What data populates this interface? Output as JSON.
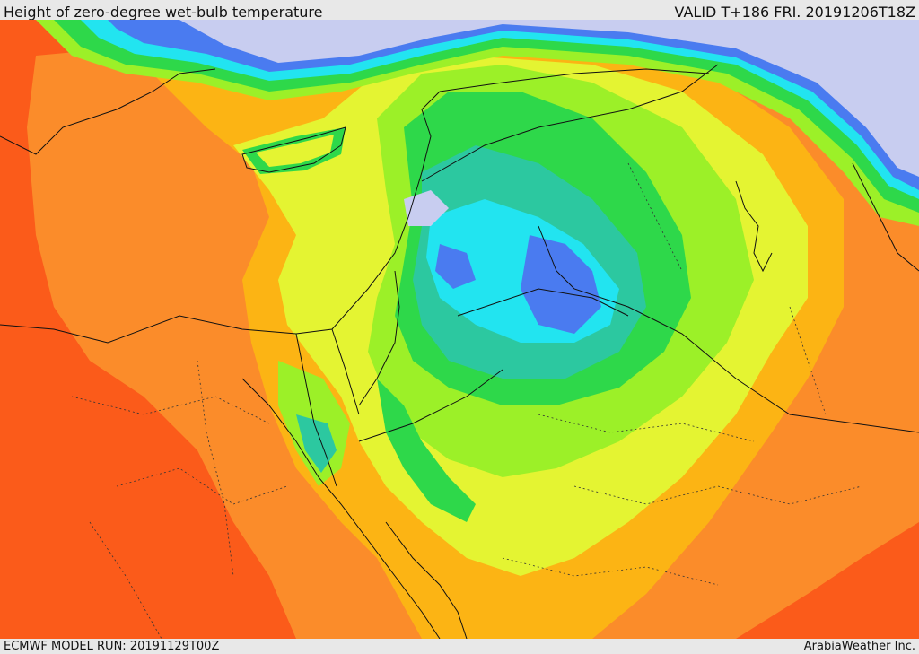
{
  "header": {
    "title": "Height of zero-degree wet-bulb temperature",
    "valid": "VALID T+186 FRI. 20191206T18Z"
  },
  "footer": {
    "model_run": "ECMWF MODEL RUN: 20191129T00Z",
    "credit": "ArabiaWeather Inc."
  },
  "palette": {
    "lowest": "#c8cdf0",
    "very_low": "#4a7bf0",
    "low": "#22e4f0",
    "low_mid": "#2cc8a0",
    "mid": "#2ed84a",
    "mid_high": "#9cf028",
    "high": "#e4f432",
    "higher": "#fcb414",
    "very_high": "#fb8c2a",
    "highest": "#fb5b1a"
  }
}
